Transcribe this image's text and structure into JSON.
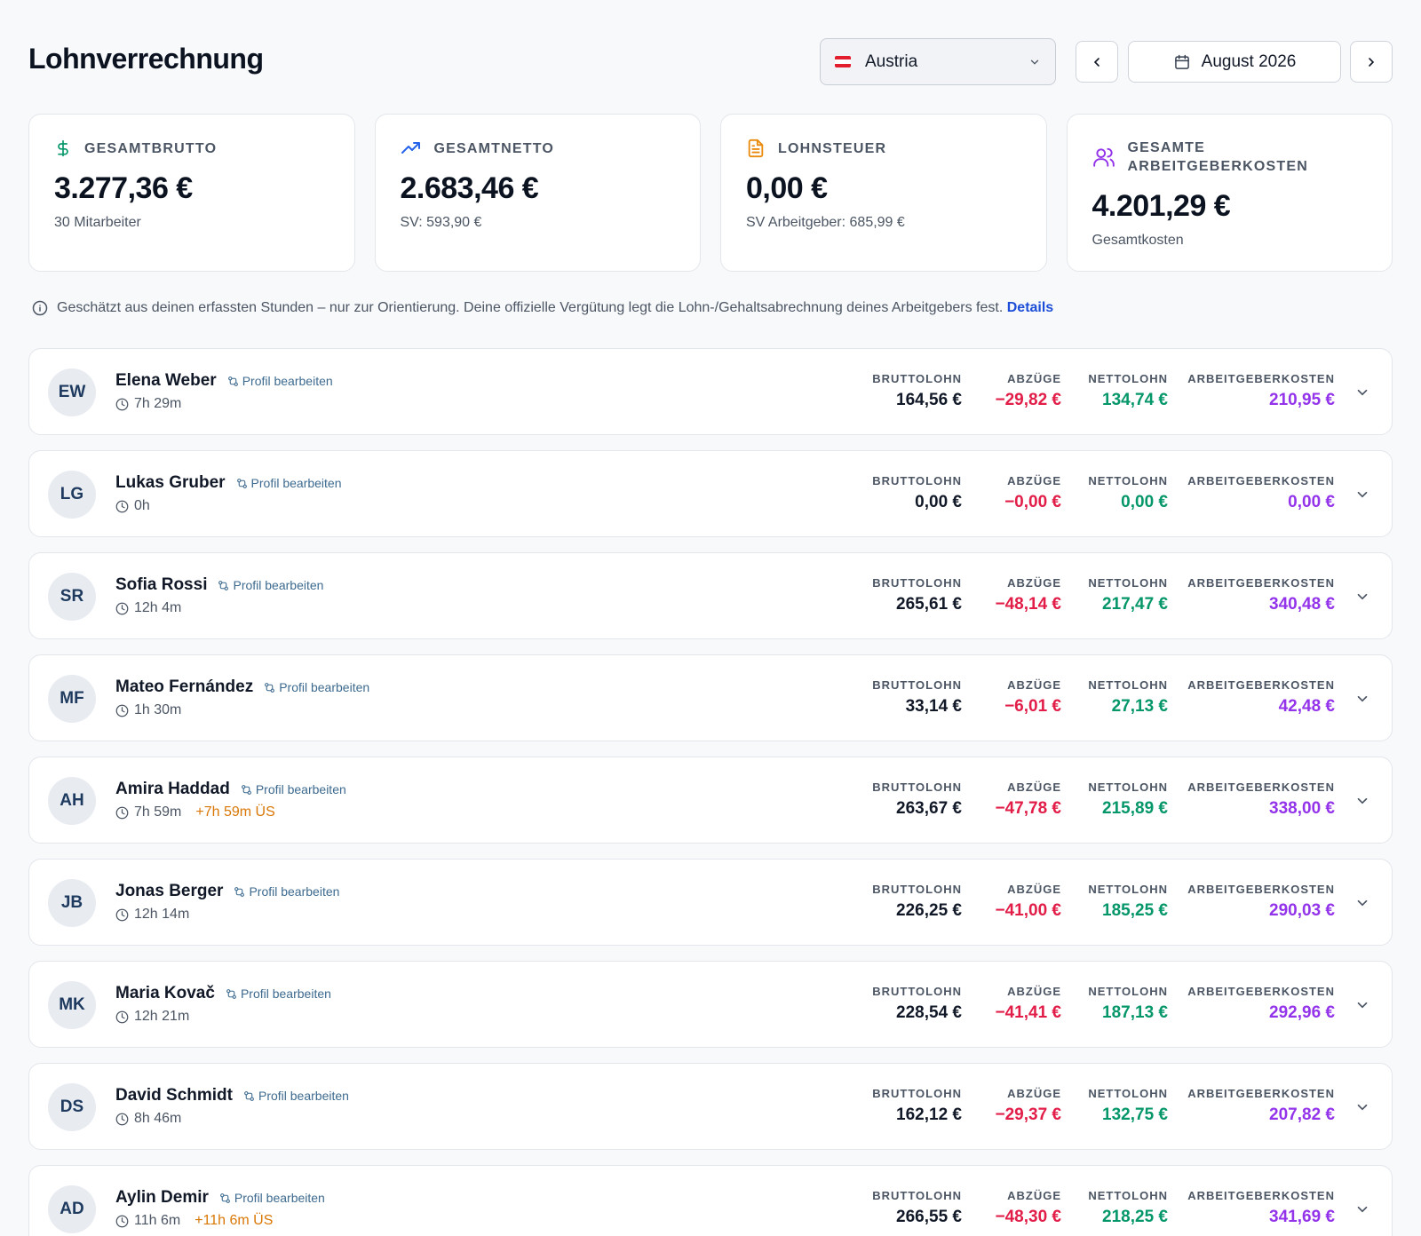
{
  "header": {
    "title": "Lohnverrechnung",
    "country": "Austria",
    "month": "August 2026"
  },
  "colors": {
    "gross": "#111827",
    "deductions": "#e11d48",
    "net": "#059669",
    "employer": "#9333ea",
    "link": "#1d4ed8",
    "overtime": "#d97706"
  },
  "summary": [
    {
      "title": "Gesamtbrutto",
      "value": "3.277,36 €",
      "sub": "30 Mitarbeiter",
      "icon": "dollar-icon"
    },
    {
      "title": "Gesamtnetto",
      "value": "2.683,46 €",
      "sub": "SV: 593,90 €",
      "icon": "trending-up-icon"
    },
    {
      "title": "Lohnsteuer",
      "value": "0,00 €",
      "sub": "SV Arbeitgeber: 685,99 €",
      "icon": "document-icon"
    },
    {
      "title": "Gesamte Arbeitgeberkosten",
      "value": "4.201,29 €",
      "sub": "Gesamtkosten",
      "icon": "users-icon"
    }
  ],
  "notice": {
    "text": "Geschätzt aus deinen erfassten Stunden – nur zur Orientierung. Deine offizielle Vergütung legt die Lohn-/Gehaltsabrechnung deines Arbeitgebers fest.",
    "link": "Details"
  },
  "labels": {
    "profile": "Profil bearbeiten",
    "gross": "BRUTTOLOHN",
    "deductions": "ABZÜGE",
    "net": "NETTOLOHN",
    "employer": "ARBEITGEBERKOSTEN"
  },
  "employees": [
    {
      "initials": "EW",
      "name": "Elena Weber",
      "hours": "7h 29m",
      "overtime": "",
      "gross": "164,56 €",
      "deductions": "−29,82 €",
      "net": "134,74 €",
      "employer": "210,95 €"
    },
    {
      "initials": "LG",
      "name": "Lukas Gruber",
      "hours": "0h",
      "overtime": "",
      "gross": "0,00 €",
      "deductions": "−0,00 €",
      "net": "0,00 €",
      "employer": "0,00 €"
    },
    {
      "initials": "SR",
      "name": "Sofia Rossi",
      "hours": "12h 4m",
      "overtime": "",
      "gross": "265,61 €",
      "deductions": "−48,14 €",
      "net": "217,47 €",
      "employer": "340,48 €"
    },
    {
      "initials": "MF",
      "name": "Mateo Fernández",
      "hours": "1h 30m",
      "overtime": "",
      "gross": "33,14 €",
      "deductions": "−6,01 €",
      "net": "27,13 €",
      "employer": "42,48 €"
    },
    {
      "initials": "AH",
      "name": "Amira Haddad",
      "hours": "7h 59m",
      "overtime": "+7h 59m ÜS",
      "gross": "263,67 €",
      "deductions": "−47,78 €",
      "net": "215,89 €",
      "employer": "338,00 €"
    },
    {
      "initials": "JB",
      "name": "Jonas Berger",
      "hours": "12h 14m",
      "overtime": "",
      "gross": "226,25 €",
      "deductions": "−41,00 €",
      "net": "185,25 €",
      "employer": "290,03 €"
    },
    {
      "initials": "MK",
      "name": "Maria Kovač",
      "hours": "12h 21m",
      "overtime": "",
      "gross": "228,54 €",
      "deductions": "−41,41 €",
      "net": "187,13 €",
      "employer": "292,96 €"
    },
    {
      "initials": "DS",
      "name": "David Schmidt",
      "hours": "8h 46m",
      "overtime": "",
      "gross": "162,12 €",
      "deductions": "−29,37 €",
      "net": "132,75 €",
      "employer": "207,82 €"
    },
    {
      "initials": "AD",
      "name": "Aylin Demir",
      "hours": "11h 6m",
      "overtime": "+11h 6m ÜS",
      "gross": "266,55 €",
      "deductions": "−48,30 €",
      "net": "218,25 €",
      "employer": "341,69 €"
    }
  ]
}
